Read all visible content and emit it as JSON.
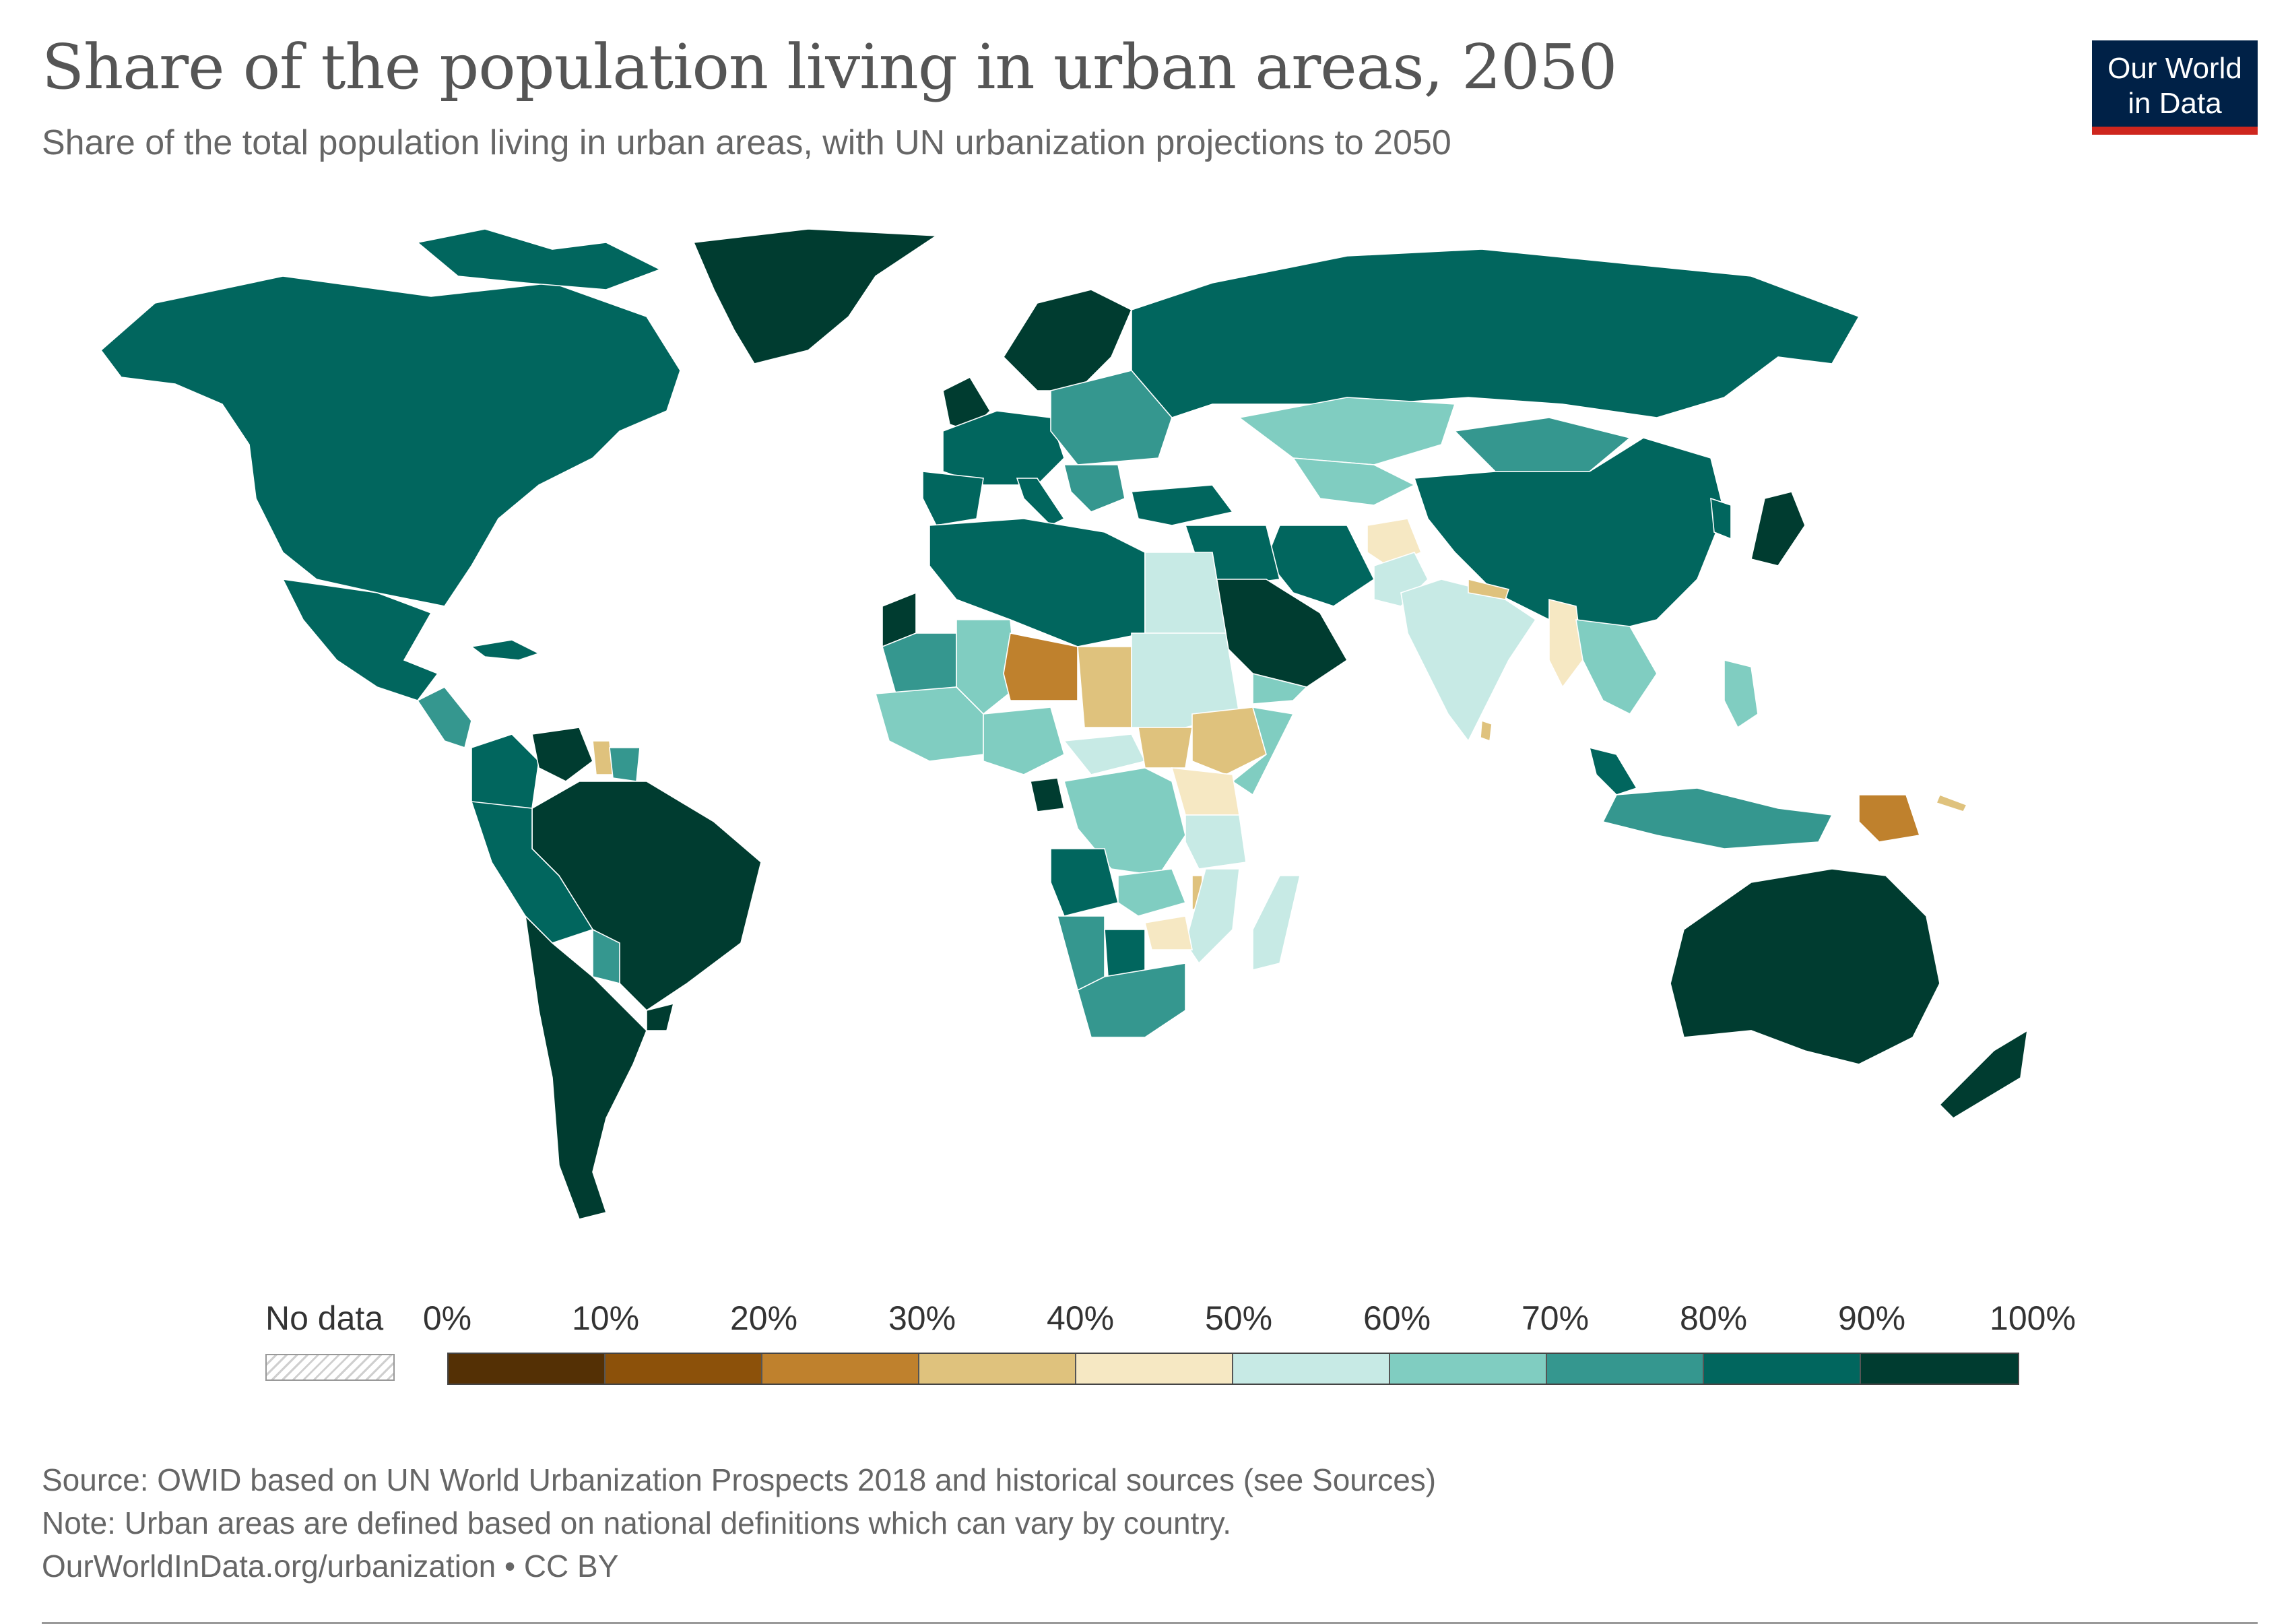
{
  "title": "Share of the population living in urban areas, 2050",
  "subtitle": "Share of the total population living in urban areas, with UN urbanization projections to 2050",
  "logo": {
    "line1": "Our World",
    "line2": "in Data"
  },
  "legend": {
    "no_data_label": "No data",
    "ticks": [
      "0%",
      "10%",
      "20%",
      "30%",
      "40%",
      "50%",
      "60%",
      "70%",
      "80%",
      "90%",
      "100%"
    ],
    "bins": [
      {
        "range": [
          0,
          10
        ],
        "color": "#543005"
      },
      {
        "range": [
          10,
          20
        ],
        "color": "#8c510a"
      },
      {
        "range": [
          20,
          30
        ],
        "color": "#bf812d"
      },
      {
        "range": [
          30,
          40
        ],
        "color": "#dfc27d"
      },
      {
        "range": [
          40,
          50
        ],
        "color": "#f6e8c3"
      },
      {
        "range": [
          50,
          60
        ],
        "color": "#c7eae5"
      },
      {
        "range": [
          60,
          70
        ],
        "color": "#80cdc1"
      },
      {
        "range": [
          70,
          80
        ],
        "color": "#35978f"
      },
      {
        "range": [
          80,
          90
        ],
        "color": "#01665e"
      },
      {
        "range": [
          90,
          100
        ],
        "color": "#003c30"
      }
    ]
  },
  "footer": {
    "source": "Source: OWID based on UN World Urbanization Prospects 2018 and historical sources (see Sources)",
    "note": "Note: Urban areas are defined based on national definitions which can vary by country.",
    "url": "OurWorldInData.org/urbanization • CC BY"
  },
  "map": {
    "year": 2050,
    "unit": "%",
    "regions": [
      {
        "name": "North America",
        "bin": 8
      },
      {
        "name": "Greenland",
        "bin": 9
      },
      {
        "name": "Mexico",
        "bin": 8
      },
      {
        "name": "Central America",
        "bin": 7
      },
      {
        "name": "Caribbean",
        "bin": 8
      },
      {
        "name": "Colombia and Ecuador",
        "bin": 8
      },
      {
        "name": "Venezuela",
        "bin": 9
      },
      {
        "name": "Guyana",
        "bin": 3
      },
      {
        "name": "Suriname",
        "bin": 7
      },
      {
        "name": "Brazil",
        "bin": 9
      },
      {
        "name": "Peru and Bolivia",
        "bin": 8
      },
      {
        "name": "Paraguay",
        "bin": 7
      },
      {
        "name": "Argentina and Chile",
        "bin": 9
      },
      {
        "name": "Uruguay",
        "bin": 9
      },
      {
        "name": "Scandinavia",
        "bin": 9
      },
      {
        "name": "United Kingdom",
        "bin": 9
      },
      {
        "name": "Western Europe",
        "bin": 8
      },
      {
        "name": "Eastern Europe",
        "bin": 7
      },
      {
        "name": "Iberia",
        "bin": 8
      },
      {
        "name": "Italy",
        "bin": 8
      },
      {
        "name": "Balkans",
        "bin": 7
      },
      {
        "name": "Turkey",
        "bin": 8
      },
      {
        "name": "Russia",
        "bin": 8
      },
      {
        "name": "Kazakhstan",
        "bin": 6
      },
      {
        "name": "Central Asia",
        "bin": 6
      },
      {
        "name": "Mongolia",
        "bin": 7
      },
      {
        "name": "China",
        "bin": 8
      },
      {
        "name": "Korea",
        "bin": 8
      },
      {
        "name": "Japan",
        "bin": 9
      },
      {
        "name": "Iran",
        "bin": 8
      },
      {
        "name": "Afghanistan",
        "bin": 4
      },
      {
        "name": "Pakistan",
        "bin": 5
      },
      {
        "name": "India",
        "bin": 5
      },
      {
        "name": "Nepal",
        "bin": 3
      },
      {
        "name": "Sri Lanka",
        "bin": 3
      },
      {
        "name": "Myanmar",
        "bin": 4
      },
      {
        "name": "Mainland Southeast Asia",
        "bin": 6
      },
      {
        "name": "Philippines",
        "bin": 6
      },
      {
        "name": "Malaysia",
        "bin": 8
      },
      {
        "name": "Indonesia",
        "bin": 7
      },
      {
        "name": "Papua New Guinea",
        "bin": 2
      },
      {
        "name": "Solomon Islands",
        "bin": 3
      },
      {
        "name": "Australia",
        "bin": 9
      },
      {
        "name": "New Zealand",
        "bin": 9
      },
      {
        "name": "Arabian Peninsula",
        "bin": 9
      },
      {
        "name": "Yemen",
        "bin": 6
      },
      {
        "name": "Iraq and Syria",
        "bin": 8
      },
      {
        "name": "North Africa",
        "bin": 8
      },
      {
        "name": "Egypt",
        "bin": 5
      },
      {
        "name": "Western Sahara",
        "bin": 9
      },
      {
        "name": "Mauritania",
        "bin": 7
      },
      {
        "name": "Mali",
        "bin": 6
      },
      {
        "name": "Niger",
        "bin": 2
      },
      {
        "name": "Chad",
        "bin": 3
      },
      {
        "name": "Sudan",
        "bin": 5
      },
      {
        "name": "West Africa",
        "bin": 6
      },
      {
        "name": "Nigeria",
        "bin": 6
      },
      {
        "name": "Gabon",
        "bin": 9
      },
      {
        "name": "Central African Republic",
        "bin": 5
      },
      {
        "name": "South Sudan",
        "bin": 3
      },
      {
        "name": "Ethiopia",
        "bin": 3
      },
      {
        "name": "Somalia",
        "bin": 6
      },
      {
        "name": "Uganda and Kenya",
        "bin": 4
      },
      {
        "name": "DR Congo",
        "bin": 6
      },
      {
        "name": "Angola",
        "bin": 8
      },
      {
        "name": "Tanzania",
        "bin": 5
      },
      {
        "name": "Zambia",
        "bin": 6
      },
      {
        "name": "Malawi",
        "bin": 3
      },
      {
        "name": "Mozambique",
        "bin": 5
      },
      {
        "name": "Zimbabwe",
        "bin": 4
      },
      {
        "name": "Namibia",
        "bin": 7
      },
      {
        "name": "Botswana",
        "bin": 8
      },
      {
        "name": "South Africa",
        "bin": 7
      },
      {
        "name": "Madagascar",
        "bin": 5
      }
    ]
  }
}
